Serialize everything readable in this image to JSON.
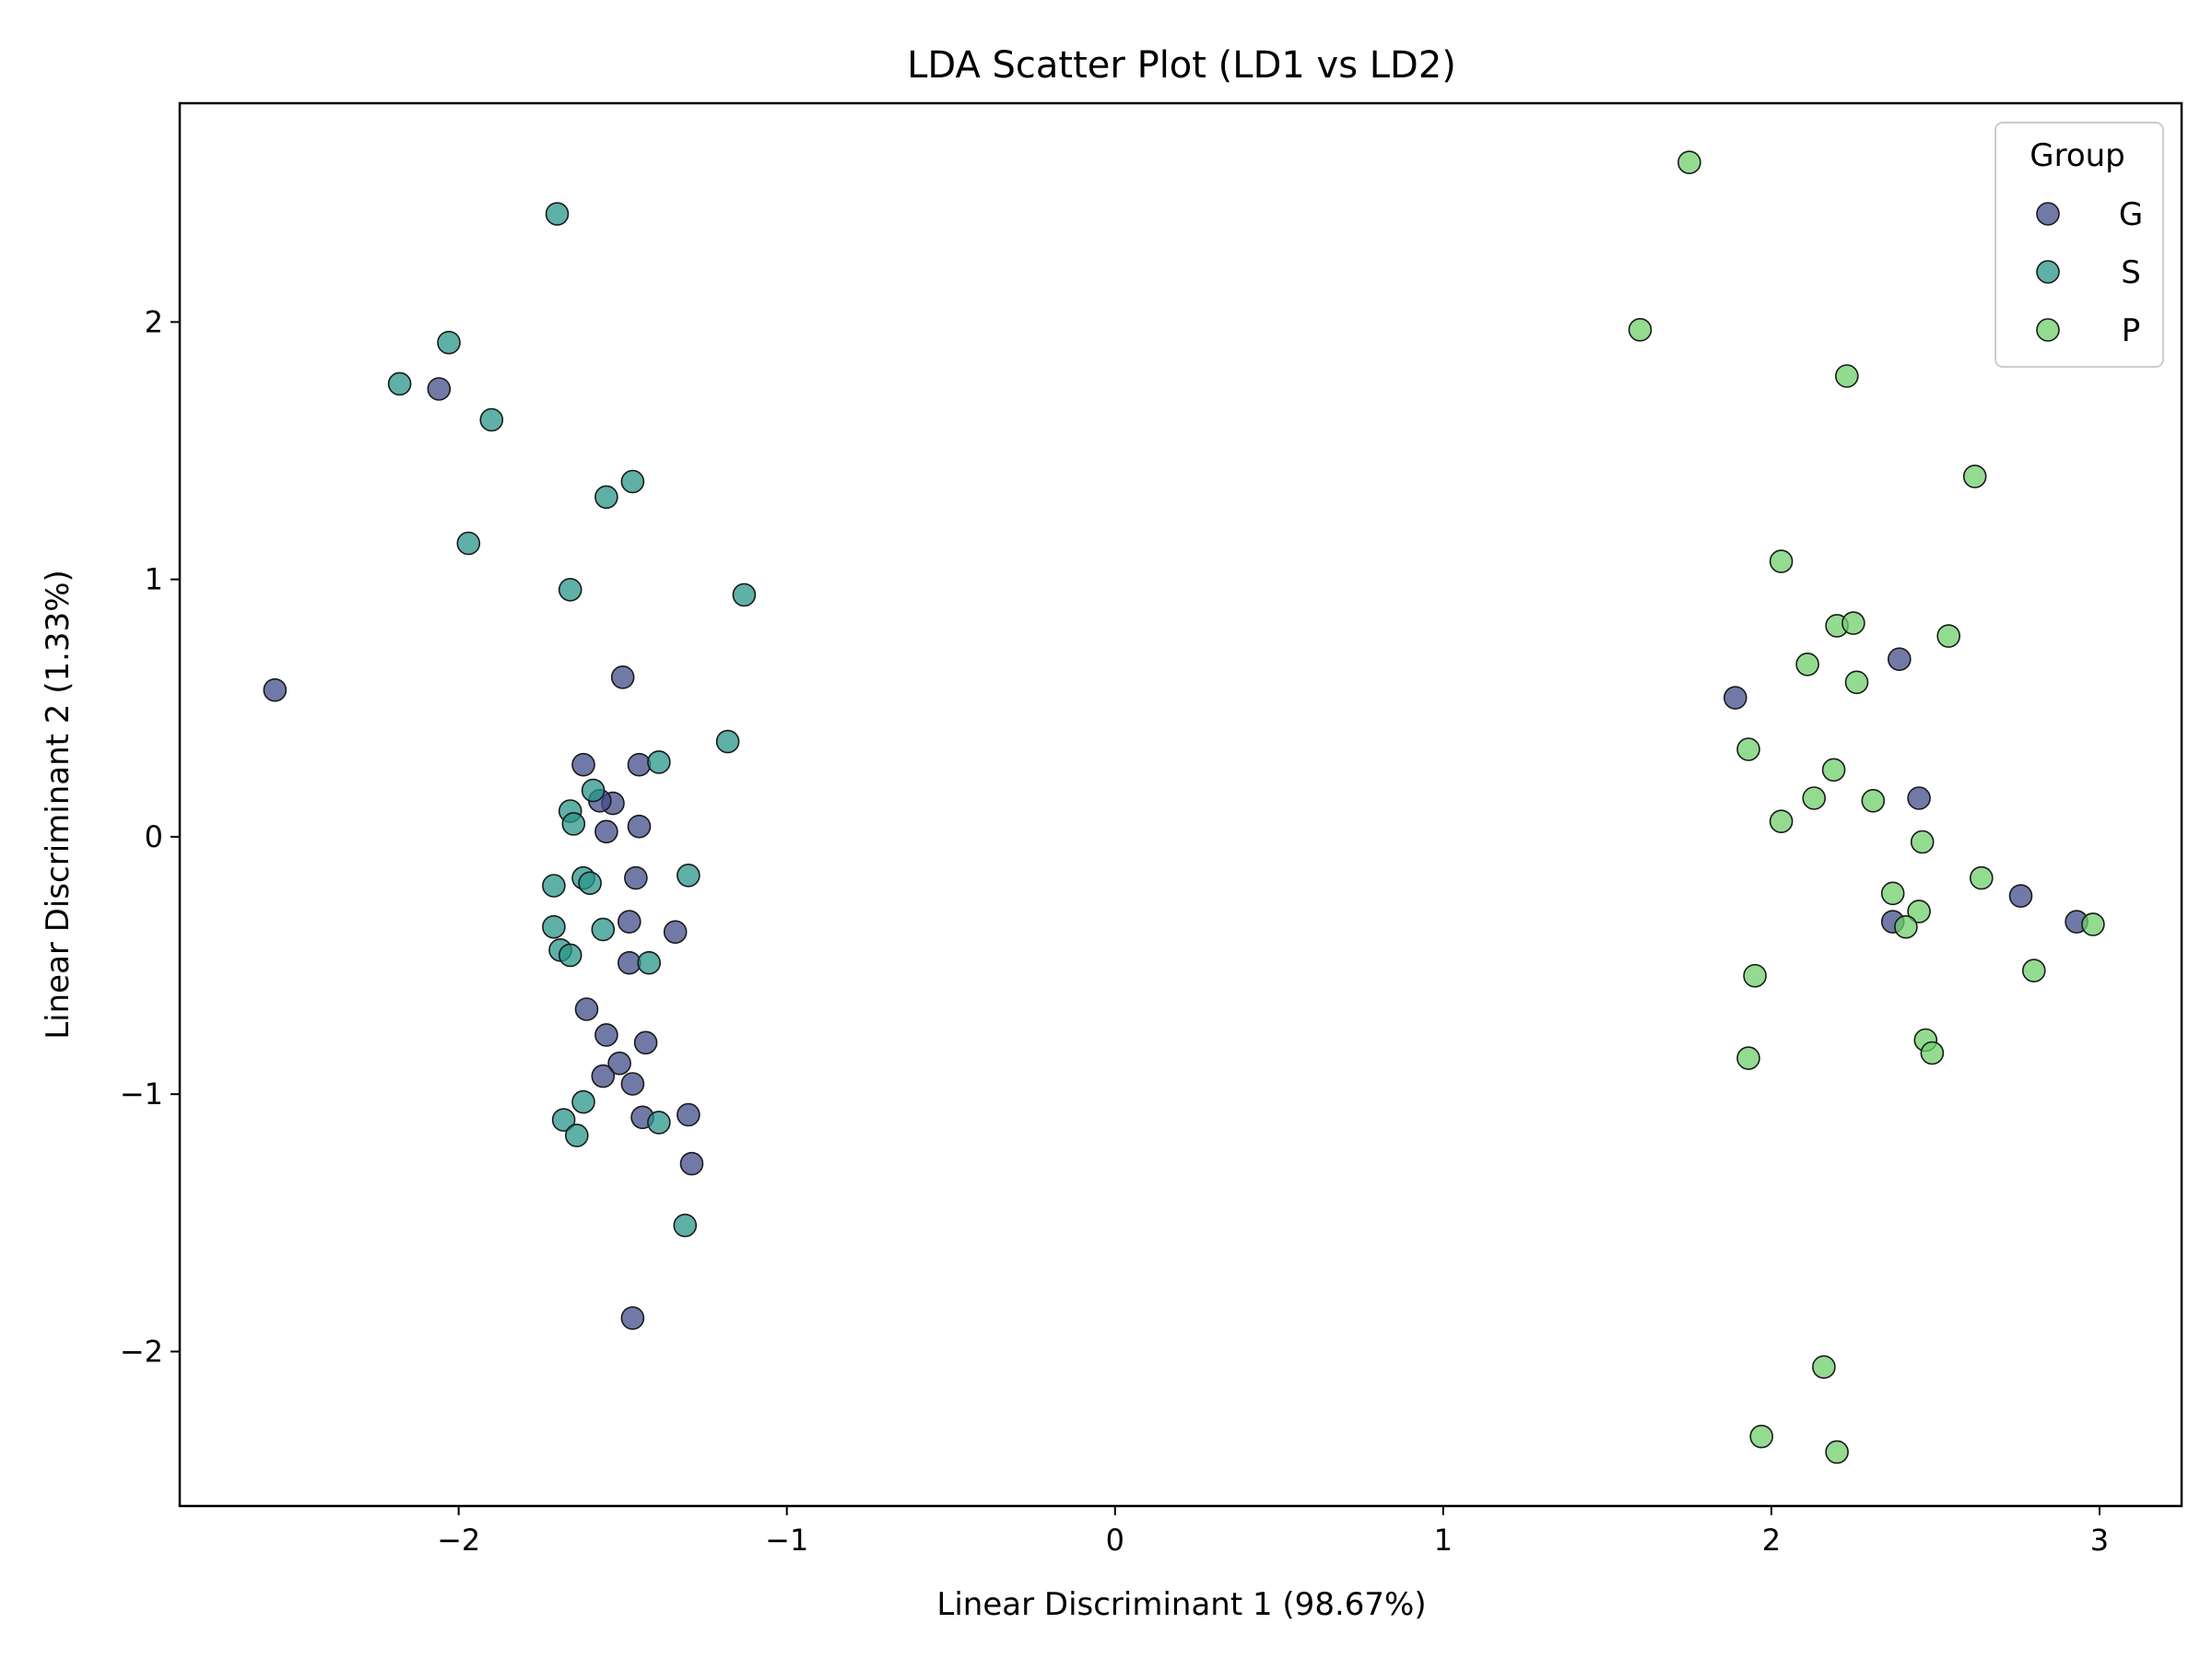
{
  "chart_data": {
    "type": "scatter",
    "title": "LDA Scatter Plot (LD1 vs LD2)",
    "xlabel": "Linear Discriminant 1 (98.67%)",
    "ylabel": "Linear Discriminant 2 (1.33%)",
    "xlim": [
      -2.85,
      3.25
    ],
    "ylim": [
      -2.6,
      2.85
    ],
    "xticks": [
      -2,
      -1,
      0,
      1,
      2,
      3
    ],
    "yticks": [
      -2,
      -1,
      0,
      1,
      2
    ],
    "xtick_labels": [
      "−2",
      "−1",
      "0",
      "1",
      "2",
      "3"
    ],
    "ytick_labels": [
      "−2",
      "−1",
      "0",
      "1",
      "2"
    ],
    "grid": false,
    "legend": {
      "title": "Group",
      "position": "top-right"
    },
    "series": [
      {
        "name": "G",
        "color": "#414d8a",
        "points": [
          [
            -2.56,
            0.57
          ],
          [
            -2.06,
            1.74
          ],
          [
            -1.5,
            0.62
          ],
          [
            -1.62,
            0.28
          ],
          [
            -1.45,
            0.28
          ],
          [
            -1.53,
            0.13
          ],
          [
            -1.57,
            0.14
          ],
          [
            -1.55,
            0.02
          ],
          [
            -1.45,
            0.04
          ],
          [
            -1.46,
            -0.16
          ],
          [
            -1.48,
            -0.33
          ],
          [
            -1.34,
            -0.37
          ],
          [
            -1.48,
            -0.49
          ],
          [
            -1.61,
            -0.67
          ],
          [
            -1.55,
            -0.77
          ],
          [
            -1.43,
            -0.8
          ],
          [
            -1.51,
            -0.88
          ],
          [
            -1.56,
            -0.93
          ],
          [
            -1.47,
            -0.96
          ],
          [
            -1.44,
            -1.09
          ],
          [
            -1.3,
            -1.08
          ],
          [
            -1.29,
            -1.27
          ],
          [
            -1.47,
            -1.87
          ],
          [
            1.89,
            0.54
          ],
          [
            2.39,
            0.69
          ],
          [
            2.45,
            0.15
          ],
          [
            2.37,
            -0.33
          ],
          [
            2.76,
            -0.23
          ],
          [
            2.93,
            -0.33
          ]
        ]
      },
      {
        "name": "S",
        "color": "#2a958a",
        "points": [
          [
            -1.7,
            2.42
          ],
          [
            -2.03,
            1.92
          ],
          [
            -2.18,
            1.76
          ],
          [
            -1.9,
            1.62
          ],
          [
            -1.47,
            1.38
          ],
          [
            -1.55,
            1.32
          ],
          [
            -1.97,
            1.14
          ],
          [
            -1.66,
            0.96
          ],
          [
            -1.13,
            0.94
          ],
          [
            -1.18,
            0.37
          ],
          [
            -1.39,
            0.29
          ],
          [
            -1.59,
            0.18
          ],
          [
            -1.66,
            0.1
          ],
          [
            -1.65,
            0.05
          ],
          [
            -1.62,
            -0.16
          ],
          [
            -1.6,
            -0.18
          ],
          [
            -1.71,
            -0.19
          ],
          [
            -1.3,
            -0.15
          ],
          [
            -1.71,
            -0.35
          ],
          [
            -1.56,
            -0.36
          ],
          [
            -1.69,
            -0.44
          ],
          [
            -1.66,
            -0.46
          ],
          [
            -1.42,
            -0.49
          ],
          [
            -1.62,
            -1.03
          ],
          [
            -1.68,
            -1.1
          ],
          [
            -1.64,
            -1.16
          ],
          [
            -1.39,
            -1.11
          ],
          [
            -1.31,
            -1.51
          ]
        ]
      },
      {
        "name": "P",
        "color": "#6fcf6b",
        "points": [
          [
            1.75,
            2.62
          ],
          [
            1.6,
            1.97
          ],
          [
            2.23,
            1.79
          ],
          [
            2.62,
            1.4
          ],
          [
            2.03,
            1.07
          ],
          [
            2.2,
            0.82
          ],
          [
            2.25,
            0.83
          ],
          [
            2.54,
            0.78
          ],
          [
            2.11,
            0.67
          ],
          [
            2.26,
            0.6
          ],
          [
            1.93,
            0.34
          ],
          [
            2.19,
            0.26
          ],
          [
            2.13,
            0.15
          ],
          [
            2.31,
            0.14
          ],
          [
            2.03,
            0.06
          ],
          [
            2.46,
            -0.02
          ],
          [
            2.64,
            -0.16
          ],
          [
            2.37,
            -0.22
          ],
          [
            2.45,
            -0.29
          ],
          [
            2.41,
            -0.35
          ],
          [
            2.98,
            -0.34
          ],
          [
            2.8,
            -0.52
          ],
          [
            1.95,
            -0.54
          ],
          [
            2.47,
            -0.79
          ],
          [
            2.49,
            -0.84
          ],
          [
            1.93,
            -0.86
          ],
          [
            2.16,
            -2.06
          ],
          [
            1.97,
            -2.33
          ],
          [
            2.2,
            -2.39
          ]
        ]
      }
    ]
  }
}
